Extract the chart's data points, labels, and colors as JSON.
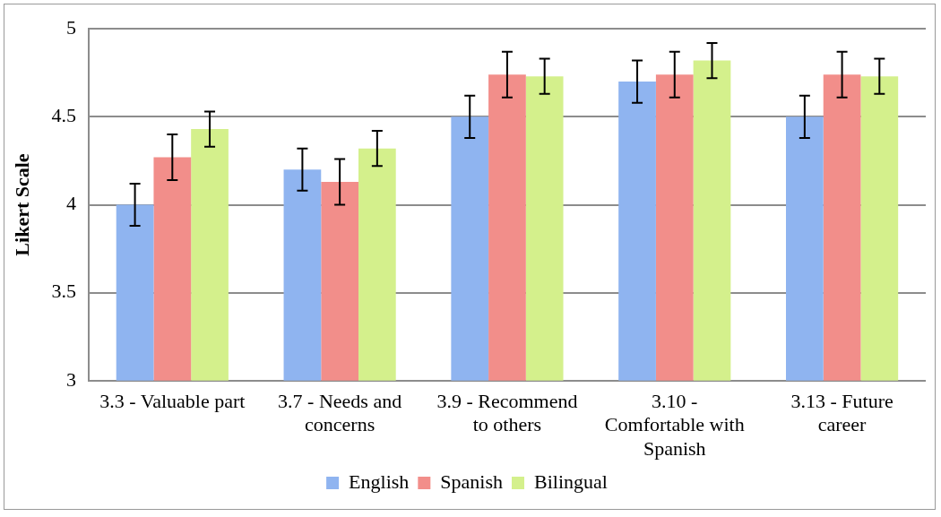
{
  "chart_data": {
    "type": "bar",
    "ylabel": "Likert Scale",
    "categories": [
      "3.3 - Valuable part",
      "3.7 - Needs and concerns",
      "3.9 - Recommend to others",
      "3.10 - Comfortable with Spanish",
      "3.13 - Future career"
    ],
    "series": [
      {
        "name": "English",
        "color": "#8fb4f0",
        "values": [
          4.0,
          4.2,
          4.5,
          4.7,
          4.5
        ],
        "errors": [
          0.12,
          0.12,
          0.12,
          0.12,
          0.12
        ]
      },
      {
        "name": "Spanish",
        "color": "#f28e8a",
        "values": [
          4.27,
          4.13,
          4.74,
          4.74,
          4.74
        ],
        "errors": [
          0.13,
          0.13,
          0.13,
          0.13,
          0.13
        ]
      },
      {
        "name": "Bilingual",
        "color": "#d4f08c",
        "values": [
          4.43,
          4.32,
          4.73,
          4.82,
          4.73
        ],
        "errors": [
          0.1,
          0.1,
          0.1,
          0.1,
          0.1
        ]
      }
    ],
    "ylim": [
      3,
      5
    ],
    "yticks": [
      3,
      3.5,
      4,
      4.5,
      5
    ],
    "grid": "y",
    "legend": "bottom"
  }
}
